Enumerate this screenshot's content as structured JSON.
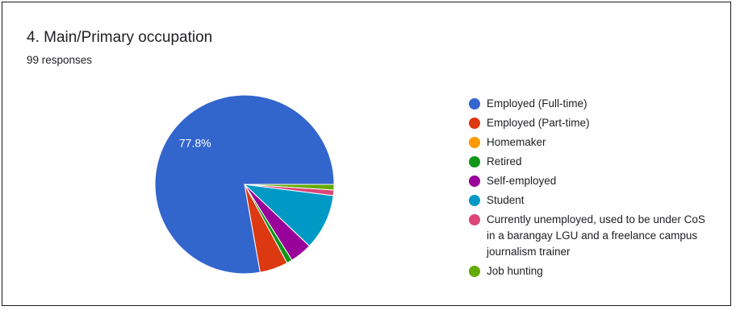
{
  "card": {
    "title": "4.  Main/Primary occupation",
    "subtitle": "99 responses"
  },
  "chart_data": {
    "type": "pie",
    "title": "4.  Main/Primary occupation",
    "subtitle": "99 responses",
    "legend_position": "right",
    "slices": [
      {
        "label": "Employed (Full-time)",
        "value": 77.8,
        "color": "#3366cc",
        "display_label": "77.8%"
      },
      {
        "label": "Employed (Part-time)",
        "value": 5.1,
        "color": "#dc3912",
        "display_label": ""
      },
      {
        "label": "Homemaker",
        "value": 0,
        "color": "#ff9900",
        "display_label": ""
      },
      {
        "label": "Retired",
        "value": 1.0,
        "color": "#109618",
        "display_label": ""
      },
      {
        "label": "Self-employed",
        "value": 4.0,
        "color": "#990099",
        "display_label": ""
      },
      {
        "label": "Student",
        "value": 10.1,
        "color": "#0099c6",
        "display_label": ""
      },
      {
        "label": "Currently unemployed, used to be under CoS in a barangay LGU and a freelance campus journalism trainer",
        "value": 1.0,
        "color": "#dd4477",
        "display_label": ""
      },
      {
        "label": "Job hunting",
        "value": 1.0,
        "color": "#66aa00",
        "display_label": ""
      }
    ]
  }
}
